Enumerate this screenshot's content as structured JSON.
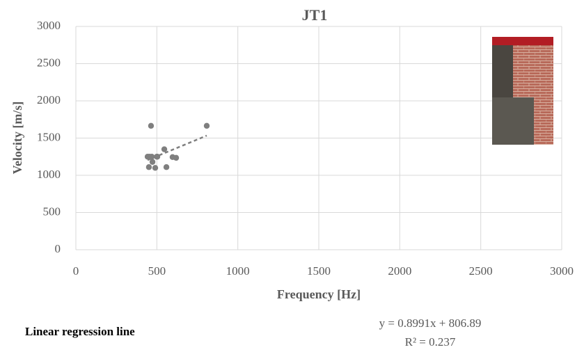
{
  "chart_data": {
    "type": "scatter",
    "title": "JT1",
    "x_label": "Frequency [Hz]",
    "y_label": "Velocity [m/s]",
    "series": [
      {
        "name": "JT1",
        "color": "#7f7f7f",
        "x": [
          464,
          808,
          443,
          469,
          503,
          451,
          490,
          473,
          546,
          559,
          597,
          619,
          455,
          500
        ],
        "values": [
          1665,
          1665,
          1250,
          1250,
          1250,
          1110,
          1100,
          1180,
          1350,
          1110,
          1245,
          1235,
          1250,
          1250
        ]
      }
    ],
    "trendline": {
      "slope": 0.8991,
      "intercept": 806.89,
      "equation": "y = 0.8991x + 806.89",
      "r2": "R² = 0.237"
    },
    "annotation": "Linear regression line",
    "xlim": [
      0,
      3000
    ],
    "xticks": [
      0,
      500,
      1000,
      1500,
      2000,
      2500,
      3000
    ],
    "ylim": [
      0,
      3000
    ],
    "yticks": [
      0,
      500,
      1000,
      1500,
      2000,
      2500,
      3000
    ],
    "grid": true
  }
}
